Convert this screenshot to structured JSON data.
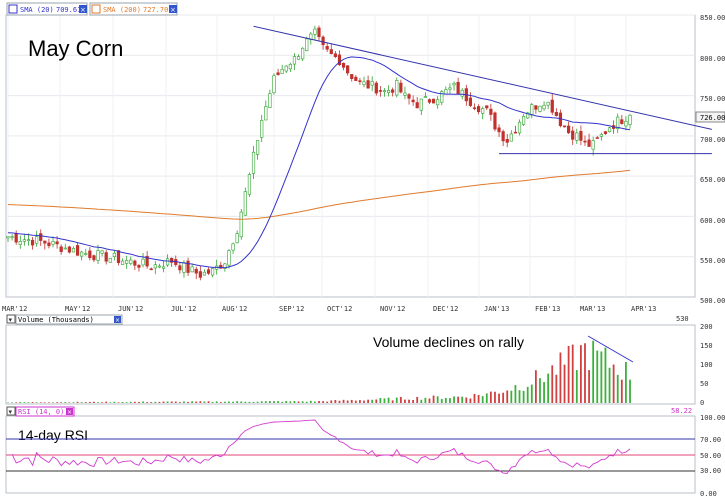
{
  "legend": {
    "sma20": {
      "label": "SMA (20)",
      "value": "709.61",
      "color": "#3333cc"
    },
    "sma200": {
      "label": "SMA (200)",
      "value": "727.70",
      "color": "#e07a2c"
    },
    "close_icon": "close-x-icon"
  },
  "title": "May Corn",
  "price_axis": {
    "ticks": [
      "850.00",
      "800.00",
      "750.00",
      "700.00",
      "650.00",
      "600.00",
      "550.00",
      "500.00"
    ],
    "last_price": "726.00"
  },
  "months": [
    "MAR'12",
    "MAY'12",
    "JUN'12",
    "JUL'12",
    "AUG'12",
    "SEP'12",
    "OCT'12",
    "NOV'12",
    "DEC'12",
    "JAN'13",
    "FEB'13",
    "MAR'13",
    "APR'13"
  ],
  "volume": {
    "label": "Volume (Thousands)",
    "value": "530",
    "annotation": "Volume declines on rally",
    "ticks": [
      "200",
      "150",
      "100",
      "50",
      "0"
    ]
  },
  "rsi": {
    "label": "RSI (14, 0)",
    "value": "58.22",
    "annotation": "14-day RSI",
    "ticks": [
      "100.00",
      "70.00",
      "50.00",
      "30.00",
      "0.00"
    ],
    "upper": 70,
    "mid": 50,
    "lower": 30
  },
  "chart_data": [
    {
      "type": "candlestick",
      "title": "May Corn",
      "ylim": [
        500,
        850
      ],
      "x_labels": [
        "MAR'12",
        "MAY'12",
        "JUN'12",
        "JUL'12",
        "AUG'12",
        "SEP'12",
        "OCT'12",
        "NOV'12",
        "DEC'12",
        "JAN'13",
        "FEB'13",
        "MAR'13",
        "APR'13"
      ],
      "series": [
        {
          "name": "SMA (20)",
          "last": 709.61
        },
        {
          "name": "SMA (200)",
          "last": 727.7
        }
      ],
      "close_path": [
        [
          0,
          575
        ],
        [
          9,
          568
        ],
        [
          18,
          555
        ],
        [
          26,
          548
        ],
        [
          35,
          538
        ],
        [
          40,
          545
        ],
        [
          44,
          534
        ],
        [
          47,
          528
        ],
        [
          50,
          532
        ],
        [
          53,
          545
        ],
        [
          56,
          585
        ],
        [
          59,
          650
        ],
        [
          62,
          720
        ],
        [
          65,
          770
        ],
        [
          68,
          790
        ],
        [
          70,
          795
        ],
        [
          72,
          812
        ],
        [
          75,
          826
        ],
        [
          77,
          808
        ],
        [
          79,
          800
        ],
        [
          81,
          795
        ],
        [
          83,
          780
        ],
        [
          86,
          765
        ],
        [
          90,
          760
        ],
        [
          92,
          755
        ],
        [
          95,
          762
        ],
        [
          97,
          748
        ],
        [
          100,
          740
        ],
        [
          103,
          745
        ],
        [
          106,
          752
        ],
        [
          109,
          760
        ],
        [
          111,
          752
        ],
        [
          114,
          740
        ],
        [
          117,
          730
        ],
        [
          120,
          705
        ],
        [
          122,
          695
        ],
        [
          124,
          710
        ],
        [
          126,
          728
        ],
        [
          129,
          738
        ],
        [
          131,
          745
        ],
        [
          133,
          735
        ],
        [
          135,
          718
        ],
        [
          137,
          705
        ],
        [
          139,
          700
        ],
        [
          141,
          690
        ],
        [
          143,
          688
        ],
        [
          145,
          700
        ],
        [
          147,
          712
        ],
        [
          149,
          718
        ],
        [
          151,
          724
        ],
        [
          152,
          730
        ]
      ],
      "trend_lines": [
        {
          "from": [
            60,
            836
          ],
          "to": [
            172,
            708
          ]
        },
        {
          "from": [
            120,
            678
          ],
          "to": [
            172,
            678
          ]
        }
      ]
    },
    {
      "type": "bar",
      "title": "Volume (Thousands)",
      "ylim": [
        0,
        200
      ],
      "last": 530
    },
    {
      "type": "line",
      "title": "RSI (14, 0)",
      "ylim": [
        0,
        100
      ],
      "reference_lines": [
        70,
        50,
        30
      ],
      "last": 58.22
    }
  ]
}
